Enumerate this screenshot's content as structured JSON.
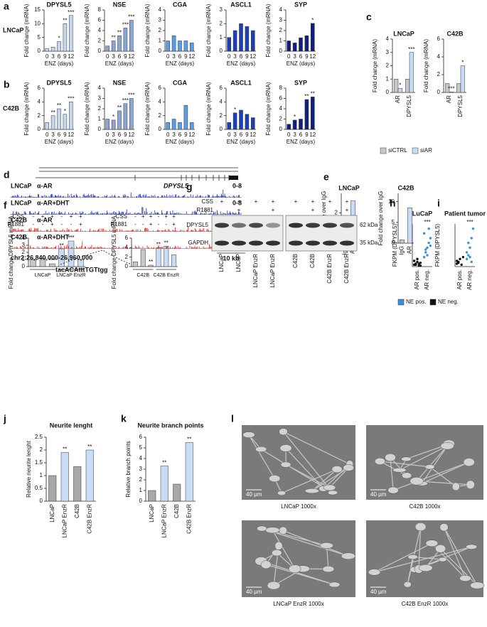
{
  "chart_data": [
    {
      "type": "bar",
      "panel": "a",
      "row_label": "LNCaP",
      "title": "DPYSL5",
      "ylabel": "Fold change (mRNA)",
      "xlabel": "ENZ (days)",
      "categories": [
        "0",
        "3",
        "6",
        "9",
        "12"
      ],
      "values": [
        1,
        1.5,
        3.5,
        10,
        13
      ],
      "stars": [
        null,
        null,
        "*",
        "**",
        "***"
      ],
      "color": "#c3d7f0",
      "ylim": [
        0,
        15
      ],
      "yticks": [
        0,
        5,
        10,
        15
      ]
    },
    {
      "type": "bar",
      "title": "NSE",
      "ylabel": "Fold change (mRNA)",
      "xlabel": "ENZ (days)",
      "categories": [
        "0",
        "3",
        "6",
        "9",
        "12"
      ],
      "values": [
        1,
        2,
        3,
        4.5,
        6
      ],
      "stars": [
        null,
        "**",
        "**",
        "***",
        "***"
      ],
      "color": "#8aa6d3",
      "ylim": [
        0,
        8
      ],
      "yticks": [
        0,
        2,
        4,
        6,
        8
      ]
    },
    {
      "type": "bar",
      "title": "CGA",
      "ylabel": "Fold change (mRNA)",
      "xlabel": "ENZ (days)",
      "categories": [
        "0",
        "3",
        "6",
        "9",
        "12"
      ],
      "values": [
        1,
        1.5,
        1,
        1,
        0.8
      ],
      "color": "#5c9ee6",
      "ylim": [
        0,
        4
      ],
      "yticks": [
        0,
        1,
        2,
        3,
        4
      ]
    },
    {
      "type": "bar",
      "title": "ASCL1",
      "ylabel": "Fold change (mRNA)",
      "xlabel": "ENZ (days)",
      "categories": [
        "0",
        "3",
        "6",
        "9",
        "12"
      ],
      "values": [
        1,
        1.5,
        2,
        1.8,
        1.5
      ],
      "color": "#1c3fb5",
      "ylim": [
        0,
        3
      ],
      "yticks": [
        0,
        1,
        2,
        3
      ]
    },
    {
      "type": "bar",
      "title": "SYP",
      "ylabel": "Fold change (mRNA)",
      "xlabel": "ENZ (days)",
      "categories": [
        "0",
        "3",
        "6",
        "9",
        "12"
      ],
      "values": [
        1,
        0.8,
        1.3,
        1.5,
        2.7
      ],
      "stars": [
        null,
        null,
        null,
        null,
        "*"
      ],
      "color": "#0e1f80",
      "ylim": [
        0,
        4
      ],
      "yticks": [
        0,
        1,
        2,
        3,
        4
      ]
    },
    {
      "type": "bar",
      "panel": "b",
      "row_label": "C42B",
      "title": "DPYSL5",
      "ylabel": "Fold change (mRNA)",
      "xlabel": "ENZ (days)",
      "categories": [
        "0",
        "3",
        "6",
        "9",
        "12"
      ],
      "values": [
        1,
        2,
        3,
        2.2,
        4
      ],
      "stars": [
        null,
        "**",
        "**",
        "*",
        "***"
      ],
      "color": "#c3d7f0",
      "ylim": [
        0,
        6
      ],
      "yticks": [
        0,
        2,
        4,
        6
      ]
    },
    {
      "type": "bar",
      "title": "NSE",
      "ylabel": "Fold change (mRNA)",
      "xlabel": "ENZ (days)",
      "categories": [
        "0",
        "3",
        "6",
        "9",
        "12"
      ],
      "values": [
        1,
        0.9,
        1.8,
        2.5,
        3
      ],
      "stars": [
        null,
        "*",
        "**",
        "***",
        "***"
      ],
      "color": "#8aa6d3",
      "ylim": [
        0,
        4
      ],
      "yticks": [
        0,
        1,
        2,
        3,
        4
      ]
    },
    {
      "type": "bar",
      "title": "CGA",
      "ylabel": "Fold change (mRNA)",
      "xlabel": "ENZ (days)",
      "categories": [
        "0",
        "3",
        "6",
        "9",
        "12"
      ],
      "values": [
        1,
        1.5,
        1,
        3.5,
        1
      ],
      "color": "#5c9ee6",
      "ylim": [
        0,
        6
      ],
      "yticks": [
        0,
        2,
        4,
        6
      ]
    },
    {
      "type": "bar",
      "title": "ASCL1",
      "ylabel": "Fold change (mRNA)",
      "xlabel": "ENZ (days)",
      "categories": [
        "0",
        "3",
        "6",
        "9",
        "12"
      ],
      "values": [
        1,
        2.4,
        2.8,
        2.2,
        1.7
      ],
      "stars": [
        null,
        "*",
        null,
        null,
        null
      ],
      "color": "#1c3fb5",
      "ylim": [
        0,
        6
      ],
      "yticks": [
        0,
        2,
        4,
        6
      ]
    },
    {
      "type": "bar",
      "title": "SYP",
      "ylabel": "Fold change (mRNA)",
      "xlabel": "ENZ (days)",
      "categories": [
        "0",
        "3",
        "6",
        "9",
        "12"
      ],
      "values": [
        1,
        1.8,
        2,
        5.8,
        6.3
      ],
      "stars": [
        null,
        "*",
        null,
        "**",
        "**"
      ],
      "color": "#0e1f80",
      "ylim": [
        0,
        8
      ],
      "yticks": [
        0,
        2,
        4,
        6,
        8
      ]
    },
    {
      "type": "bar",
      "panel": "c",
      "title": "LNCaP",
      "ylabel": "Fold change (mRNA)",
      "categories": [
        "AR",
        "DPYSL5"
      ],
      "series": [
        {
          "name": "siCTRL",
          "color": "#c8c8c8",
          "values": [
            1,
            1
          ]
        },
        {
          "name": "siAR",
          "color": "#c9dcf5",
          "values": [
            0.3,
            3
          ],
          "stars": [
            "*",
            "***"
          ]
        }
      ],
      "ylim": [
        0,
        4
      ],
      "yticks": [
        0,
        1,
        2,
        3,
        4
      ]
    },
    {
      "type": "bar",
      "title": "C42B",
      "ylabel": "Fold change (mRNA)",
      "categories": [
        "AR",
        "DPYSL5"
      ],
      "series": [
        {
          "color": "#c8c8c8",
          "values": [
            1,
            1
          ]
        },
        {
          "color": "#c9dcf5",
          "values": [
            0.05,
            3
          ],
          "stars": [
            "***",
            "*"
          ]
        }
      ],
      "ylim": [
        0,
        6
      ],
      "yticks": [
        0,
        2,
        4,
        6
      ]
    },
    {
      "type": "bar",
      "panel": "e",
      "title": "LNCaP",
      "ylabel": "Fold change over IgG",
      "categories": [
        "IgG",
        "AR"
      ],
      "values": [
        1,
        2.8
      ],
      "colors": [
        "#c8c8c8",
        "#c9dcf5"
      ],
      "ylim": [
        0,
        3.3
      ],
      "yticks": [
        1,
        2
      ]
    },
    {
      "type": "bar",
      "title": "C42B",
      "ylabel": "Fold change over IgG",
      "categories": [
        "IgG",
        "AR"
      ],
      "values": [
        0.8,
        8.5
      ],
      "colors": [
        "#c8c8c8",
        "#c9dcf5"
      ],
      "ylim": [
        0,
        12
      ],
      "yticks": [
        0,
        5,
        10
      ]
    },
    {
      "type": "bar",
      "panel": "f",
      "ylabel": "Fold change DPYSL5 mRNA",
      "categories": [
        null,
        null,
        null,
        null,
        null,
        null
      ],
      "conditions": [
        {
          "label": "CSS",
          "values": [
            "-",
            "+",
            "+",
            "-",
            "+",
            "+"
          ]
        },
        {
          "label": "R1881",
          "values": [
            "-",
            "-",
            "+",
            "-",
            "-",
            "+"
          ]
        }
      ],
      "groups": [
        "LNCaP",
        "LNCaP EnzR"
      ],
      "values": [
        1,
        1.2,
        0.4,
        2.5,
        3.6,
        1
      ],
      "stars": [
        null,
        null,
        "***",
        "**",
        "***",
        null
      ],
      "colors": [
        "#c8c8c8",
        "#c8c8c8",
        "#c8c8c8",
        "#c9dcf5",
        "#c9dcf5",
        "#c9dcf5"
      ],
      "ylim": [
        0,
        4
      ],
      "yticks": [
        0,
        1,
        2,
        3,
        4
      ]
    },
    {
      "type": "bar",
      "ylabel": "Fold change DPYSL5 mRNA",
      "categories": [
        null,
        null,
        null,
        null,
        null,
        null
      ],
      "conditions": [
        {
          "label": "CSS",
          "values": [
            "-",
            "+",
            "+",
            "-",
            "+",
            "+"
          ]
        },
        {
          "label": "R1881",
          "values": [
            "-",
            "-",
            "+",
            "-",
            "-",
            "+"
          ]
        }
      ],
      "groups": [
        "C42B",
        "C42B EnzR"
      ],
      "values": [
        1,
        3.6,
        0.3,
        4,
        4.3,
        2.5
      ],
      "stars": [
        null,
        null,
        "**",
        "**",
        "**",
        null
      ],
      "colors": [
        "#c8c8c8",
        "#c8c8c8",
        "#c8c8c8",
        "#c9dcf5",
        "#c9dcf5",
        "#c9dcf5"
      ],
      "ylim": [
        0,
        6
      ],
      "yticks": [
        0,
        2,
        4,
        6
      ]
    },
    {
      "type": "strip",
      "panel": "h",
      "title": "LuCaP",
      "ylabel": "FKPM (DPYSL5)",
      "categories": [
        "AR pos.",
        "AR neg."
      ],
      "series": [
        {
          "name": "NE pos.",
          "color": "#3b8fd9",
          "points": [
            [],
            [
              10,
              15,
              20,
              25,
              30,
              35,
              18,
              12,
              40,
              22
            ]
          ]
        },
        {
          "name": "NE neg.",
          "color": "#111111",
          "points": [
            [
              2,
              3,
              5,
              1,
              4,
              6,
              2,
              8,
              3,
              1
            ],
            []
          ]
        }
      ],
      "stars": [
        null,
        "***"
      ],
      "ylim": [
        0,
        45
      ]
    },
    {
      "type": "strip",
      "panel": "i",
      "title": "Patient tumor",
      "ylabel": "FKPM (DPYSL5)",
      "categories": [
        "AR pos.",
        "AR neg."
      ],
      "series": [
        {
          "color": "#3b8fd9",
          "points": [
            [],
            [
              8,
              12,
              20,
              30,
              40,
              15,
              25,
              10,
              5
            ]
          ]
        },
        {
          "color": "#111111",
          "points": [
            [
              3,
              5,
              8,
              2,
              10,
              6,
              4
            ],
            []
          ]
        }
      ],
      "stars": [
        null,
        "***"
      ],
      "ylim": [
        0,
        45
      ]
    },
    {
      "type": "bar",
      "panel": "j",
      "title": "Neurite lenght",
      "ylabel": "Relative neurite lenght",
      "categories": [
        "LNCaP",
        "LNCaP EnzR",
        "C42B",
        "C42B EnzR"
      ],
      "values": [
        1,
        1.9,
        1.35,
        2
      ],
      "stars": [
        null,
        "**",
        null,
        "**"
      ],
      "colors": [
        "#a8a8a8",
        "#c9dcf5",
        "#a8a8a8",
        "#c9dcf5"
      ],
      "ylim": [
        0,
        2.5
      ],
      "yticks": [
        0,
        0.5,
        1,
        1.5,
        2,
        2.5
      ]
    },
    {
      "type": "bar",
      "panel": "k",
      "title": "Neurite branch points",
      "ylabel": "Relative branch points",
      "categories": [
        "LNCaP",
        "LNCaP EnzR",
        "C42B",
        "C42B EnzR"
      ],
      "values": [
        1,
        3.3,
        1.6,
        5.5
      ],
      "stars": [
        null,
        "**",
        null,
        "**"
      ],
      "colors": [
        "#a8a8a8",
        "#c9dcf5",
        "#a8a8a8",
        "#c9dcf5"
      ],
      "ylim": [
        0,
        6
      ],
      "yticks": [
        0,
        1,
        2,
        3,
        4,
        5,
        6
      ]
    }
  ],
  "tracks": {
    "panel": "d",
    "gene": "DPYSL5",
    "rows": [
      {
        "cell": "LNCaP",
        "antibody": "α-AR",
        "range": "0-8",
        "color": "#1a22c8"
      },
      {
        "cell": "LNCaP",
        "antibody": "α-AR+DHT",
        "range": "0-8",
        "color": "#1a22c8"
      },
      {
        "cell": "C42B",
        "antibody": "α-AR",
        "range": "0-8",
        "color": "#e0201a"
      },
      {
        "cell": "C42B",
        "antibody": "α-AR+DHT",
        "range": "0-8",
        "color": "#e0201a"
      }
    ],
    "coords": "chr2:26,840,000-26,960,000",
    "motif": "tacACAtttTGTtgg",
    "scale": "10 kb"
  },
  "blot": {
    "panel": "g",
    "conditions": [
      {
        "label": "CSS",
        "values": [
          "+",
          "+",
          "+",
          "+",
          "+",
          "+",
          "+",
          "+"
        ]
      },
      {
        "label": "R1881",
        "values": [
          null,
          "+",
          null,
          "+",
          null,
          "+",
          null,
          "+"
        ]
      }
    ],
    "bands": [
      {
        "label": "DPYSL5",
        "size": "62 kDa"
      },
      {
        "label": "GAPDH",
        "size": "35 kDa"
      }
    ],
    "lanes": [
      "LNCaP",
      "LNCaP",
      "LNCaP EnzR",
      "LNCaP EnzR",
      "C42B",
      "C42B",
      "C42B EnzR",
      "C42B EnzR"
    ]
  },
  "micrographs": {
    "panel": "l",
    "images": [
      {
        "scale": "40 µm",
        "caption": "LNCaP 1000x"
      },
      {
        "scale": "40 µm",
        "caption": "C42B 1000x"
      },
      {
        "scale": "40 µm",
        "caption": "LNCaP EnzR 1000x"
      },
      {
        "scale": "40 µm",
        "caption": "C42B EnzR 1000x"
      }
    ]
  }
}
